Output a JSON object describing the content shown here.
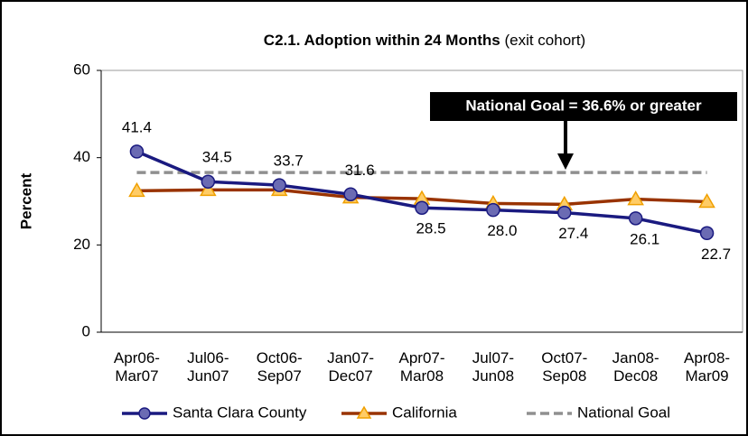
{
  "chart_data": {
    "type": "line",
    "title": "C2.1. Adoption within 24 Months",
    "subtitle": "(exit cohort)",
    "ylabel": "Percent",
    "categories": [
      "Apr06-Mar07",
      "Jul06-Jun07",
      "Oct06-Sep07",
      "Jan07-Dec07",
      "Apr07-Mar08",
      "Jul07-Jun08",
      "Oct07-Sep08",
      "Jan08-Dec08",
      "Apr08-Mar09"
    ],
    "series": [
      {
        "name": "Santa Clara County",
        "color": "#1a1a80",
        "marker": "circle",
        "marker_color": "#6b6bb3",
        "values": [
          41.4,
          34.5,
          33.7,
          31.6,
          28.5,
          28.0,
          27.4,
          26.1,
          22.7
        ],
        "value_labels": [
          "41.4",
          "34.5",
          "33.7",
          "31.6",
          "28.5",
          "28.0",
          "27.4",
          "26.1",
          "22.7"
        ]
      },
      {
        "name": "California",
        "color": "#993300",
        "marker": "triangle",
        "marker_color": "#ffcc66",
        "values": [
          32.4,
          32.6,
          32.6,
          30.9,
          30.6,
          29.5,
          29.3,
          30.5,
          29.9
        ]
      },
      {
        "name": "National Goal",
        "color": "#909090",
        "marker": "none",
        "dash": true,
        "values": [
          36.6,
          36.6,
          36.6,
          36.6,
          36.6,
          36.6,
          36.6,
          36.6,
          36.6
        ]
      }
    ],
    "annotation": "National Goal = 36.6% or greater",
    "ylim": [
      0,
      60
    ],
    "yticks": [
      0,
      20,
      40,
      60
    ],
    "grid": false
  }
}
